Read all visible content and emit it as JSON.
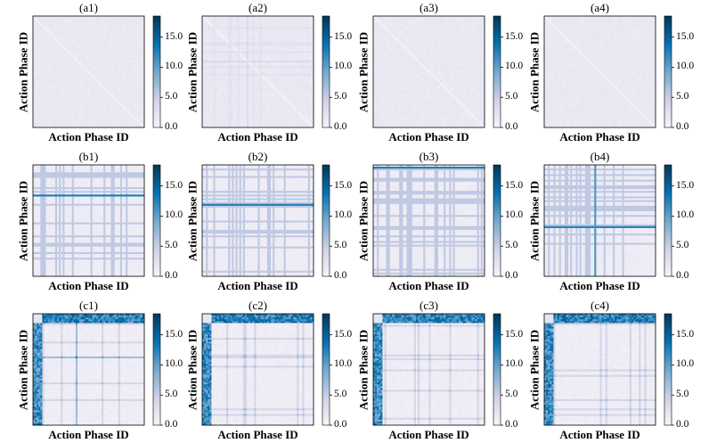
{
  "chart_data": {
    "type": "heatmap",
    "panels": [
      {
        "title": "(a1)",
        "xlabel": "Action Phase ID",
        "ylabel": "Action Phase ID",
        "pattern": "uniform-low-with-light-diagonal"
      },
      {
        "title": "(a2)",
        "xlabel": "Action Phase ID",
        "ylabel": "Action Phase ID",
        "pattern": "uniform-low-with-faint-grid"
      },
      {
        "title": "(a3)",
        "xlabel": "Action Phase ID",
        "ylabel": "Action Phase ID",
        "pattern": "uniform-low-with-light-diagonal"
      },
      {
        "title": "(a4)",
        "xlabel": "Action Phase ID",
        "ylabel": "Action Phase ID",
        "pattern": "uniform-low-with-light-diagonal"
      },
      {
        "title": "(b1)",
        "xlabel": "Action Phase ID",
        "ylabel": "Action Phase ID",
        "pattern": "block-grid-with-strong-horizontal-line"
      },
      {
        "title": "(b2)",
        "xlabel": "Action Phase ID",
        "ylabel": "Action Phase ID",
        "pattern": "block-grid-with-strong-horizontal-line"
      },
      {
        "title": "(b3)",
        "xlabel": "Action Phase ID",
        "ylabel": "Action Phase ID",
        "pattern": "block-grid-with-top-line"
      },
      {
        "title": "(b4)",
        "xlabel": "Action Phase ID",
        "ylabel": "Action Phase ID",
        "pattern": "block-grid-with-center-cross"
      },
      {
        "title": "(c1)",
        "xlabel": "Action Phase ID",
        "ylabel": "Action Phase ID",
        "pattern": "high-top-band-and-left-band"
      },
      {
        "title": "(c2)",
        "xlabel": "Action Phase ID",
        "ylabel": "Action Phase ID",
        "pattern": "high-top-band-and-left-band"
      },
      {
        "title": "(c3)",
        "xlabel": "Action Phase ID",
        "ylabel": "Action Phase ID",
        "pattern": "high-top-band-and-left-band"
      },
      {
        "title": "(c4)",
        "xlabel": "Action Phase ID",
        "ylabel": "Action Phase ID",
        "pattern": "high-top-band-and-left-band"
      }
    ],
    "colorbar": {
      "ticks": [
        "0.0",
        "5.0",
        "10.0",
        "15.0"
      ],
      "range": [
        0,
        18.5
      ],
      "colors": [
        "#f7f4f9",
        "#d0d1e6",
        "#74a9cf",
        "#0570b0",
        "#023858"
      ]
    },
    "grid": false
  }
}
